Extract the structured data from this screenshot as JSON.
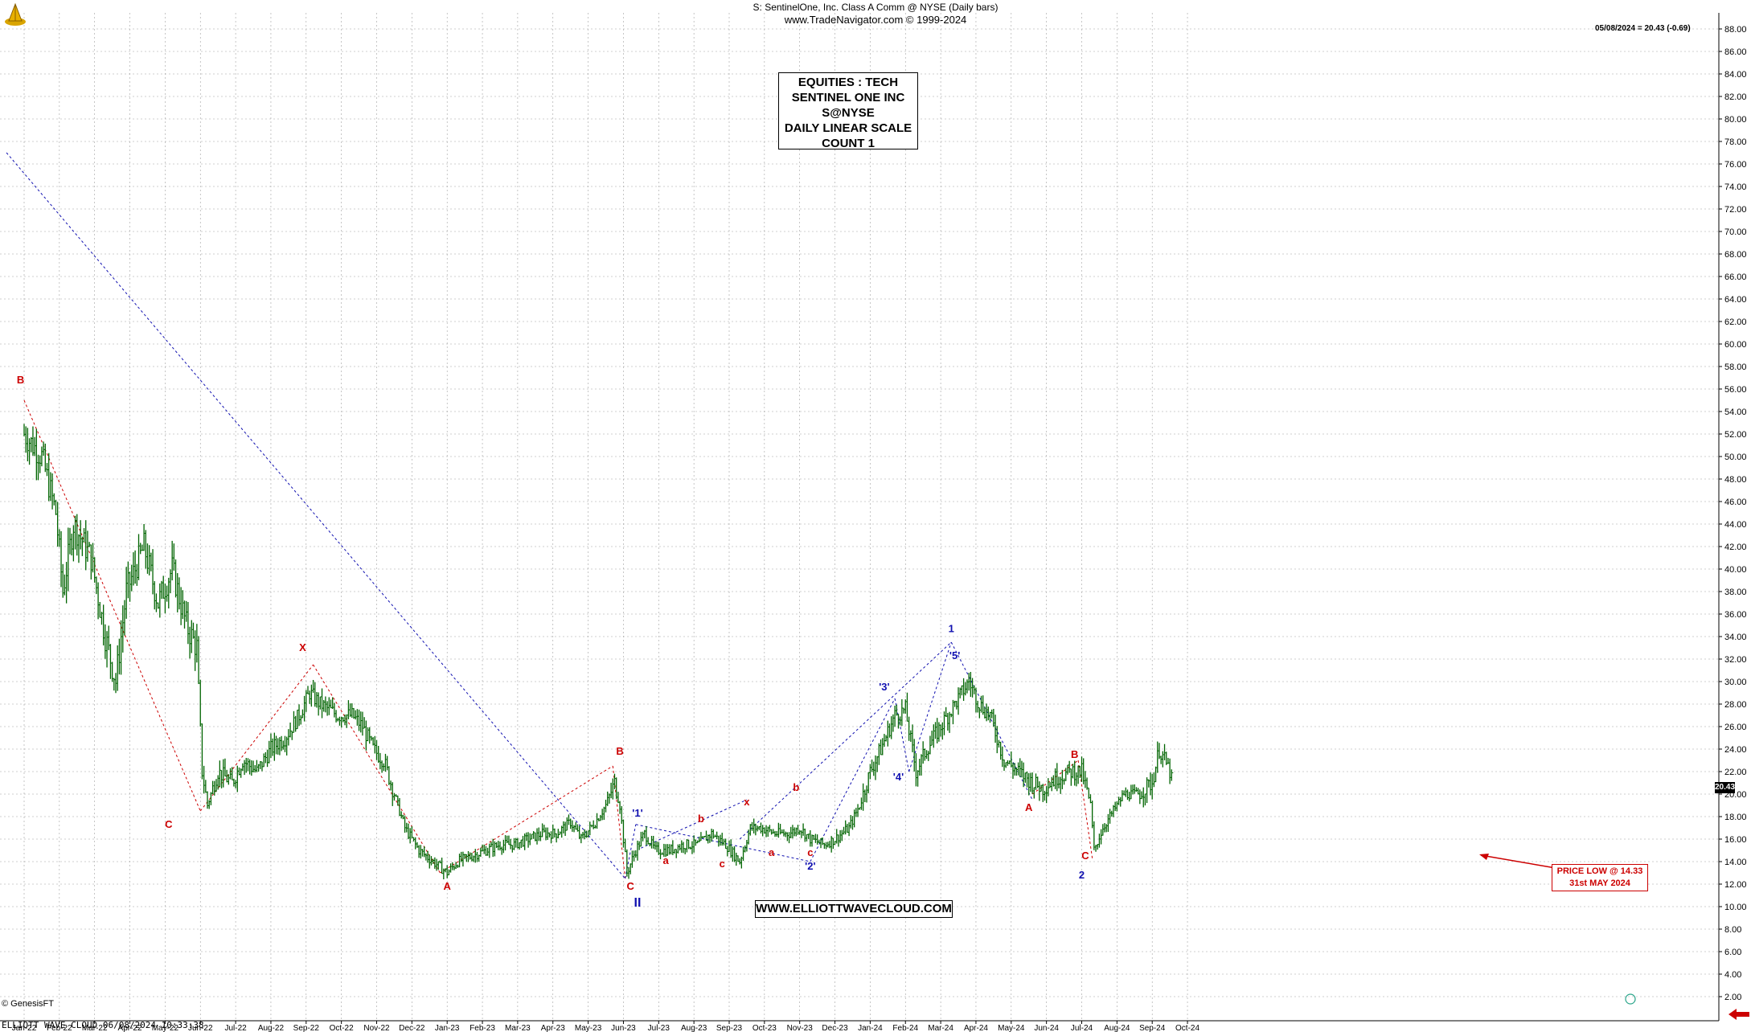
{
  "header": {
    "title": "S:  SentinelOne, Inc. Class A Comm @ NYSE  (Daily bars)",
    "subtitle": "www.TradeNavigator.com © 1999-2024"
  },
  "info_box": [
    "EQUITIES : TECH",
    "SENTINEL ONE INC",
    "S@NYSE",
    "DAILY LINEAR SCALE",
    "COUNT 1"
  ],
  "website": "WWW.ELLIOTTWAVECLOUD.COM",
  "price_low_note": [
    "PRICE LOW @ 14.33",
    "31st MAY 2024"
  ],
  "last_quote": "05/08/2024 = 20.43 (-0.69)",
  "last_price_tag": "20.43",
  "footer": {
    "credit": "© GenesisFT",
    "stamp": "ELLIOTT WAVE CLOUD   06/08/2024 10:33:38"
  },
  "colors": {
    "bars": "#006400",
    "red_labels": "#cc0000",
    "blue_labels": "#1010b0",
    "grid": "#a0a0a0"
  },
  "icons": [
    "trade-navigator-logo-icon",
    "left-arrow-icon",
    "circle-icon"
  ],
  "chart_data": {
    "type": "bar",
    "x_ticks": [
      "Jan-22",
      "Feb-22",
      "Mar-22",
      "Apr-22",
      "May-22",
      "Jun-22",
      "Jul-22",
      "Aug-22",
      "Sep-22",
      "Oct-22",
      "Nov-22",
      "Dec-22",
      "Jan-23",
      "Feb-23",
      "Mar-23",
      "Apr-23",
      "May-23",
      "Jun-23",
      "Jul-23",
      "Aug-23",
      "Sep-23",
      "Oct-23",
      "Nov-23",
      "Dec-23",
      "Jan-24",
      "Feb-24",
      "Mar-24",
      "Apr-24",
      "May-24",
      "Jun-24",
      "Jul-24",
      "Aug-24",
      "Sep-24",
      "Oct-24"
    ],
    "y_ticks": [
      "88.00",
      "86.00",
      "84.00",
      "82.00",
      "80.00",
      "78.00",
      "76.00",
      "74.00",
      "72.00",
      "70.00",
      "68.00",
      "66.00",
      "64.00",
      "62.00",
      "60.00",
      "58.00",
      "56.00",
      "54.00",
      "52.00",
      "50.00",
      "48.00",
      "46.00",
      "44.00",
      "42.00",
      "40.00",
      "38.00",
      "36.00",
      "34.00",
      "32.00",
      "30.00",
      "28.00",
      "26.00",
      "24.00",
      "22.00",
      "20.00",
      "18.00",
      "16.00",
      "14.00",
      "12.00",
      "10.00",
      "8.00",
      "6.00",
      "4.00",
      "2.00"
    ],
    "ylim": [
      0,
      89
    ],
    "grid": true,
    "series": [
      {
        "values": [
          [
            0.0,
            52
          ],
          [
            0.5,
            50
          ],
          [
            0.9,
            45
          ],
          [
            1.1,
            38
          ],
          [
            1.4,
            44
          ],
          [
            1.9,
            41
          ],
          [
            2.3,
            34
          ],
          [
            2.6,
            30
          ],
          [
            2.9,
            38
          ],
          [
            3.4,
            42
          ],
          [
            3.8,
            37
          ],
          [
            4.2,
            40
          ],
          [
            4.6,
            35
          ],
          [
            4.9,
            33
          ],
          [
            5.05,
            22
          ],
          [
            5.2,
            19
          ],
          [
            5.5,
            22
          ],
          [
            5.9,
            21
          ],
          [
            6.2,
            23
          ],
          [
            6.6,
            22
          ],
          [
            7.0,
            24
          ],
          [
            7.4,
            25
          ],
          [
            7.8,
            27
          ],
          [
            8.1,
            29
          ],
          [
            8.4,
            28
          ],
          [
            8.9,
            27
          ],
          [
            9.3,
            27
          ],
          [
            9.6,
            26
          ],
          [
            9.9,
            24
          ],
          [
            10.2,
            23
          ],
          [
            10.5,
            20
          ],
          [
            10.8,
            17
          ],
          [
            11.2,
            15
          ],
          [
            11.6,
            14
          ],
          [
            12.0,
            13
          ],
          [
            12.3,
            14
          ],
          [
            12.7,
            14.5
          ],
          [
            13.1,
            15
          ],
          [
            13.5,
            15.5
          ],
          [
            13.9,
            15.5
          ],
          [
            14.3,
            16
          ],
          [
            14.7,
            16.5
          ],
          [
            15.1,
            16.5
          ],
          [
            15.5,
            17.5
          ],
          [
            15.8,
            16
          ],
          [
            16.2,
            17.5
          ],
          [
            16.5,
            19
          ],
          [
            16.75,
            21
          ],
          [
            16.9,
            19
          ],
          [
            17.1,
            13
          ],
          [
            17.35,
            15
          ],
          [
            17.6,
            16.5
          ],
          [
            17.9,
            15
          ],
          [
            18.3,
            15
          ],
          [
            18.7,
            15.5
          ],
          [
            19.1,
            15.5
          ],
          [
            19.5,
            16.5
          ],
          [
            19.9,
            15.5
          ],
          [
            20.3,
            14
          ],
          [
            20.6,
            17
          ],
          [
            20.9,
            17
          ],
          [
            21.3,
            16.5
          ],
          [
            21.7,
            16.5
          ],
          [
            22.0,
            17
          ],
          [
            22.3,
            16
          ],
          [
            22.7,
            15.5
          ],
          [
            23.0,
            16
          ],
          [
            23.4,
            17
          ],
          [
            23.7,
            19
          ],
          [
            24.0,
            22
          ],
          [
            24.3,
            24
          ],
          [
            24.7,
            27
          ],
          [
            25.0,
            27.5
          ],
          [
            25.3,
            22
          ],
          [
            25.6,
            24
          ],
          [
            26.0,
            26
          ],
          [
            26.4,
            28
          ],
          [
            26.8,
            30
          ],
          [
            27.1,
            28
          ],
          [
            27.4,
            27
          ],
          [
            27.8,
            23
          ],
          [
            28.2,
            22
          ],
          [
            28.6,
            21
          ],
          [
            28.9,
            20.5
          ],
          [
            29.3,
            21.5
          ],
          [
            29.7,
            22
          ],
          [
            30.0,
            22
          ],
          [
            30.25,
            19
          ],
          [
            30.35,
            15
          ],
          [
            30.6,
            17
          ],
          [
            30.9,
            18.5
          ],
          [
            31.2,
            20
          ],
          [
            31.6,
            20
          ],
          [
            32.0,
            21
          ],
          [
            32.2,
            24
          ],
          [
            32.5,
            22
          ],
          [
            32.6,
            20.43
          ]
        ]
      }
    ],
    "wave_labels": [
      "B",
      "C",
      "X",
      "A",
      "B",
      "C",
      "II",
      "'1'",
      "a",
      "b",
      "c",
      "x",
      "a",
      "b",
      "c",
      "'2'",
      "'3'",
      "'4'",
      "1",
      "'5'",
      "A",
      "B",
      "C",
      "2"
    ]
  }
}
